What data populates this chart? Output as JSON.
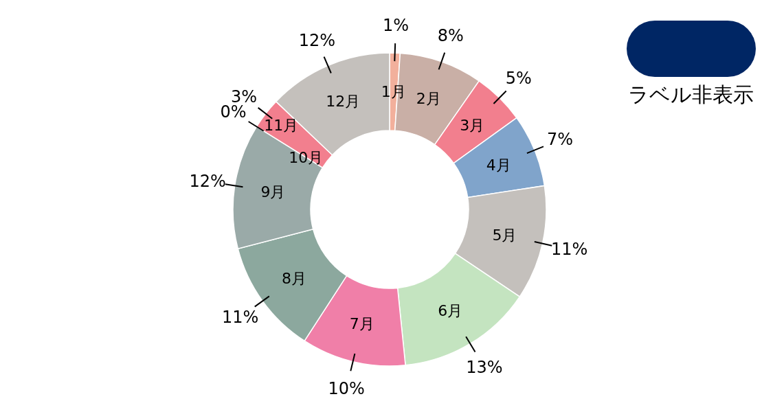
{
  "chart_data": {
    "type": "donut",
    "categories": [
      "1月",
      "2月",
      "3月",
      "4月",
      "5月",
      "6月",
      "7月",
      "8月",
      "9月",
      "10月",
      "11月",
      "12月"
    ],
    "values": [
      1,
      8,
      5,
      7,
      11,
      13,
      10,
      11,
      12,
      0,
      3,
      12
    ],
    "value_labels": [
      "1%",
      "8%",
      "5%",
      "7%",
      "11%",
      "13%",
      "10%",
      "11%",
      "12%",
      "0%",
      "3%",
      "12%"
    ],
    "colors": [
      "#f2b09c",
      "#c9afa6",
      "#f27f8e",
      "#80a4cb",
      "#c4c0bc",
      "#c4e4c0",
      "#f07fa8",
      "#8ca89e",
      "#9aaaa8",
      "#f4a090",
      "#f27f8e",
      "#c4c0bc"
    ],
    "annotations": [
      "ラベル非表示"
    ]
  }
}
